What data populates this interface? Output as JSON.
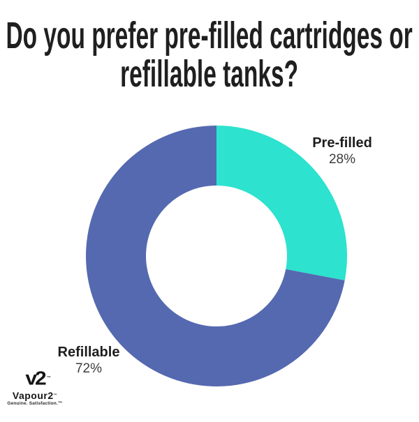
{
  "title": {
    "line1": "Do you prefer pre-filled cartridges or",
    "line2": "refillable tanks?"
  },
  "chart_data": {
    "type": "pie",
    "donut": true,
    "inner_radius_ratio": 0.54,
    "start_angle_deg": 0,
    "direction": "clockwise",
    "categories": [
      "Pre-filled",
      "Refillable"
    ],
    "values": [
      28,
      72
    ],
    "labels": [
      "28%",
      "72%"
    ],
    "colors": [
      "#2de2ce",
      "#5569b0"
    ],
    "title": "Do you prefer pre-filled cartridges or refillable tanks?",
    "legend_position": "none",
    "background": "#ffffff"
  },
  "logo": {
    "mark": "v2",
    "mark_tm": "™",
    "wordmark": "Vapour2",
    "wordmark_tm": "™",
    "tagline": "Genuine. Satisfaction.™"
  }
}
